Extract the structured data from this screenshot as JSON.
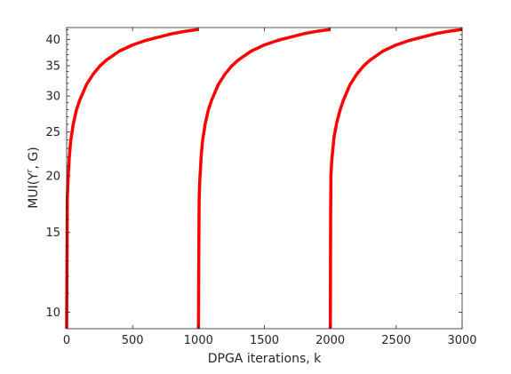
{
  "chart_data": {
    "type": "line",
    "xlabel": "DPGA iterations, k",
    "ylabel": {
      "base": "MUI(Y",
      "sup": "r",
      "tail": ", G)"
    },
    "xlim": [
      0,
      3000
    ],
    "ylim": [
      9.2,
      42.5
    ],
    "y_scale": "log",
    "grid": false,
    "x_ticks": [
      0,
      500,
      1000,
      1500,
      2000,
      2500,
      3000
    ],
    "x_tick_labels": [
      "0",
      "500",
      "1000",
      "1500",
      "2000",
      "2500",
      "3000"
    ],
    "y_ticks": [
      10,
      15,
      20,
      25,
      30,
      35,
      40
    ],
    "y_tick_labels": [
      "10",
      "15",
      "20",
      "25",
      "30",
      "35",
      "40"
    ],
    "series": [
      {
        "color": "#ff0000",
        "segments": [
          {
            "x": [
              0,
              2,
              5,
              10,
              20,
              30,
              50,
              75,
              100,
              150,
              200,
              250,
              300,
              400,
              500,
              600,
              700,
              800,
              900,
              1000
            ],
            "y": [
              9.2,
              12.0,
              17.8,
              19.5,
              22.0,
              23.8,
              26.0,
              28.0,
              29.4,
              31.8,
              33.5,
              34.9,
              36.0,
              37.7,
              38.9,
              39.8,
              40.5,
              41.2,
              41.7,
              42.1
            ]
          },
          {
            "x": [
              1000,
              1002,
              1005,
              1010,
              1020,
              1030,
              1050,
              1075,
              1100,
              1150,
              1200,
              1250,
              1300,
              1400,
              1500,
              1600,
              1700,
              1800,
              1900,
              2000
            ],
            "y": [
              9.2,
              12.5,
              17.8,
              19.5,
              22.0,
              23.8,
              26.0,
              28.0,
              29.4,
              31.8,
              33.5,
              34.9,
              36.0,
              37.7,
              38.9,
              39.8,
              40.5,
              41.2,
              41.7,
              42.1
            ]
          },
          {
            "x": [
              2000,
              2002,
              2005,
              2010,
              2020,
              2030,
              2050,
              2075,
              2100,
              2150,
              2200,
              2250,
              2300,
              2400,
              2500,
              2600,
              2700,
              2800,
              2900,
              3000
            ],
            "y": [
              9.2,
              16.0,
              20.0,
              21.5,
              23.0,
              24.5,
              26.3,
              28.0,
              29.4,
              31.8,
              33.5,
              34.9,
              36.0,
              37.7,
              38.9,
              39.8,
              40.5,
              41.2,
              41.7,
              42.1
            ]
          }
        ]
      }
    ]
  }
}
